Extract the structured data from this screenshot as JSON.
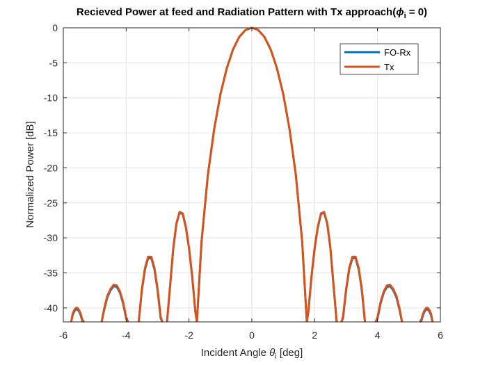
{
  "chart_data": {
    "type": "line",
    "title": "Recieved Power at feed and Radiation Pattern with Tx approach(",
    "title_symbol": "ϕ",
    "title_subscript": "i",
    "title_suffix": " = 0)",
    "xlabel": "Incident Angle ",
    "xlabel_symbol": "θ",
    "xlabel_subscript": "i",
    "xlabel_suffix": " [deg]",
    "ylabel": "Normalized Power [dB]",
    "xlim": [
      -6,
      6
    ],
    "ylim": [
      -42,
      0
    ],
    "xticks": [
      -6,
      -4,
      -2,
      0,
      2,
      4,
      6
    ],
    "yticks": [
      0,
      -5,
      -10,
      -15,
      -20,
      -25,
      -30,
      -35,
      -40
    ],
    "xtick_labels": [
      "-6",
      "-4",
      "-2",
      "0",
      "2",
      "4",
      "6"
    ],
    "ytick_labels": [
      "0",
      "-5",
      "-10",
      "-15",
      "-20",
      "-25",
      "-30",
      "-35",
      "-40"
    ],
    "grid": true,
    "legend_position": "top-right",
    "series": [
      {
        "name": "FO-Rx",
        "color": "#0072BD",
        "x": [
          -5.75,
          -5.7,
          -5.65,
          -5.6,
          -5.55,
          -5.5,
          -5.45,
          -5.4,
          -5.35,
          null,
          -4.78,
          -4.7,
          -4.6,
          -4.5,
          -4.4,
          -4.3,
          -4.2,
          -4.1,
          -4.0,
          -3.94,
          null,
          -3.6,
          -3.5,
          -3.4,
          -3.3,
          -3.2,
          -3.1,
          -3.0,
          -2.9,
          -2.85,
          null,
          -2.7,
          -2.6,
          -2.5,
          -2.4,
          -2.3,
          -2.2,
          -2.1,
          -2.0,
          -1.9,
          -1.8,
          -1.75,
          null,
          -1.75,
          -1.6,
          -1.4,
          -1.2,
          -1.0,
          -0.8,
          -0.6,
          -0.4,
          -0.2,
          0,
          0.2,
          0.4,
          0.6,
          0.8,
          1.0,
          1.2,
          1.4,
          1.6,
          1.75,
          null,
          1.75,
          1.8,
          1.9,
          2.0,
          2.1,
          2.2,
          2.3,
          2.4,
          2.5,
          2.6,
          2.7,
          null,
          2.85,
          2.9,
          3.0,
          3.1,
          3.2,
          3.3,
          3.4,
          3.5,
          3.6,
          null,
          3.94,
          4.0,
          4.1,
          4.2,
          4.3,
          4.4,
          4.5,
          4.6,
          4.7,
          4.78,
          null,
          5.35,
          5.4,
          5.45,
          5.5,
          5.55,
          5.6,
          5.65,
          5.7,
          5.75
        ],
        "y": [
          -42,
          -41.0,
          -40.5,
          -40.2,
          -40.2,
          -40.5,
          -41.0,
          -41.8,
          -42,
          null,
          -42,
          -40.3,
          -38.5,
          -37.5,
          -36.9,
          -37.0,
          -37.8,
          -39.3,
          -41.5,
          -42,
          null,
          -42,
          -37.5,
          -34.5,
          -32.9,
          -32.9,
          -34.5,
          -37.5,
          -41.5,
          -42,
          null,
          -42,
          -36.8,
          -31.5,
          -28.0,
          -26.4,
          -26.6,
          -28.5,
          -31.5,
          -35.5,
          -40.5,
          -42,
          null,
          -42,
          -30.5,
          -21.0,
          -14.5,
          -9.5,
          -5.8,
          -3.1,
          -1.3,
          -0.3,
          0,
          -0.3,
          -1.3,
          -3.1,
          -5.8,
          -9.5,
          -14.5,
          -21.0,
          -30.5,
          -42,
          null,
          -42,
          -40.5,
          -35.5,
          -31.5,
          -28.5,
          -26.6,
          -26.4,
          -28.0,
          -31.5,
          -36.8,
          -42,
          null,
          -42,
          -41.5,
          -37.5,
          -34.5,
          -32.9,
          -32.9,
          -34.5,
          -37.5,
          -42,
          null,
          -42,
          -41.5,
          -39.3,
          -37.8,
          -37.0,
          -36.9,
          -37.5,
          -38.5,
          -40.3,
          -42,
          null,
          -42,
          -41.8,
          -41.0,
          -40.5,
          -40.2,
          -40.2,
          -40.5,
          -41.0,
          -42
        ]
      },
      {
        "name": "Tx",
        "color": "#D95319",
        "x": [
          -5.75,
          -5.7,
          -5.65,
          -5.6,
          -5.55,
          -5.5,
          -5.45,
          -5.4,
          -5.35,
          null,
          -4.78,
          -4.7,
          -4.6,
          -4.5,
          -4.4,
          -4.3,
          -4.2,
          -4.1,
          -4.0,
          -3.94,
          null,
          -3.6,
          -3.5,
          -3.4,
          -3.3,
          -3.2,
          -3.1,
          -3.0,
          -2.9,
          -2.85,
          null,
          -2.7,
          -2.6,
          -2.5,
          -2.4,
          -2.3,
          -2.2,
          -2.1,
          -2.0,
          -1.9,
          -1.8,
          -1.75,
          null,
          -1.75,
          -1.6,
          -1.4,
          -1.2,
          -1.0,
          -0.8,
          -0.6,
          -0.4,
          -0.2,
          0,
          0.2,
          0.4,
          0.6,
          0.8,
          1.0,
          1.2,
          1.4,
          1.6,
          1.75,
          null,
          1.75,
          1.8,
          1.9,
          2.0,
          2.1,
          2.2,
          2.3,
          2.4,
          2.5,
          2.6,
          2.7,
          null,
          2.85,
          2.9,
          3.0,
          3.1,
          3.2,
          3.3,
          3.4,
          3.5,
          3.6,
          null,
          3.94,
          4.0,
          4.1,
          4.2,
          4.3,
          4.4,
          4.5,
          4.6,
          4.7,
          4.78,
          null,
          5.35,
          5.4,
          5.45,
          5.5,
          5.55,
          5.6,
          5.65,
          5.7,
          5.75
        ],
        "y": [
          -42,
          -40.8,
          -40.3,
          -40.0,
          -40.0,
          -40.3,
          -40.8,
          -41.6,
          -42,
          null,
          -42,
          -40.1,
          -38.3,
          -37.3,
          -36.7,
          -36.8,
          -37.6,
          -39.1,
          -41.3,
          -42,
          null,
          -42,
          -37.3,
          -34.3,
          -32.7,
          -32.7,
          -34.3,
          -37.3,
          -41.3,
          -42,
          null,
          -42,
          -36.7,
          -31.4,
          -27.9,
          -26.3,
          -26.5,
          -28.4,
          -31.4,
          -35.4,
          -40.4,
          -42,
          null,
          -42,
          -30.5,
          -21.0,
          -14.5,
          -9.5,
          -5.8,
          -3.1,
          -1.3,
          -0.3,
          0,
          -0.3,
          -1.3,
          -3.1,
          -5.8,
          -9.5,
          -14.5,
          -21.0,
          -30.5,
          -42,
          null,
          -42,
          -40.4,
          -35.4,
          -31.4,
          -28.4,
          -26.5,
          -26.3,
          -27.9,
          -31.4,
          -36.7,
          -42,
          null,
          -42,
          -41.3,
          -37.3,
          -34.3,
          -32.7,
          -32.7,
          -34.3,
          -37.3,
          -42,
          null,
          -42,
          -41.3,
          -39.1,
          -37.6,
          -36.8,
          -36.7,
          -37.3,
          -38.3,
          -40.1,
          -42,
          null,
          -42,
          -41.6,
          -40.8,
          -40.3,
          -40.0,
          -40.0,
          -40.3,
          -40.8,
          -42
        ]
      }
    ]
  }
}
